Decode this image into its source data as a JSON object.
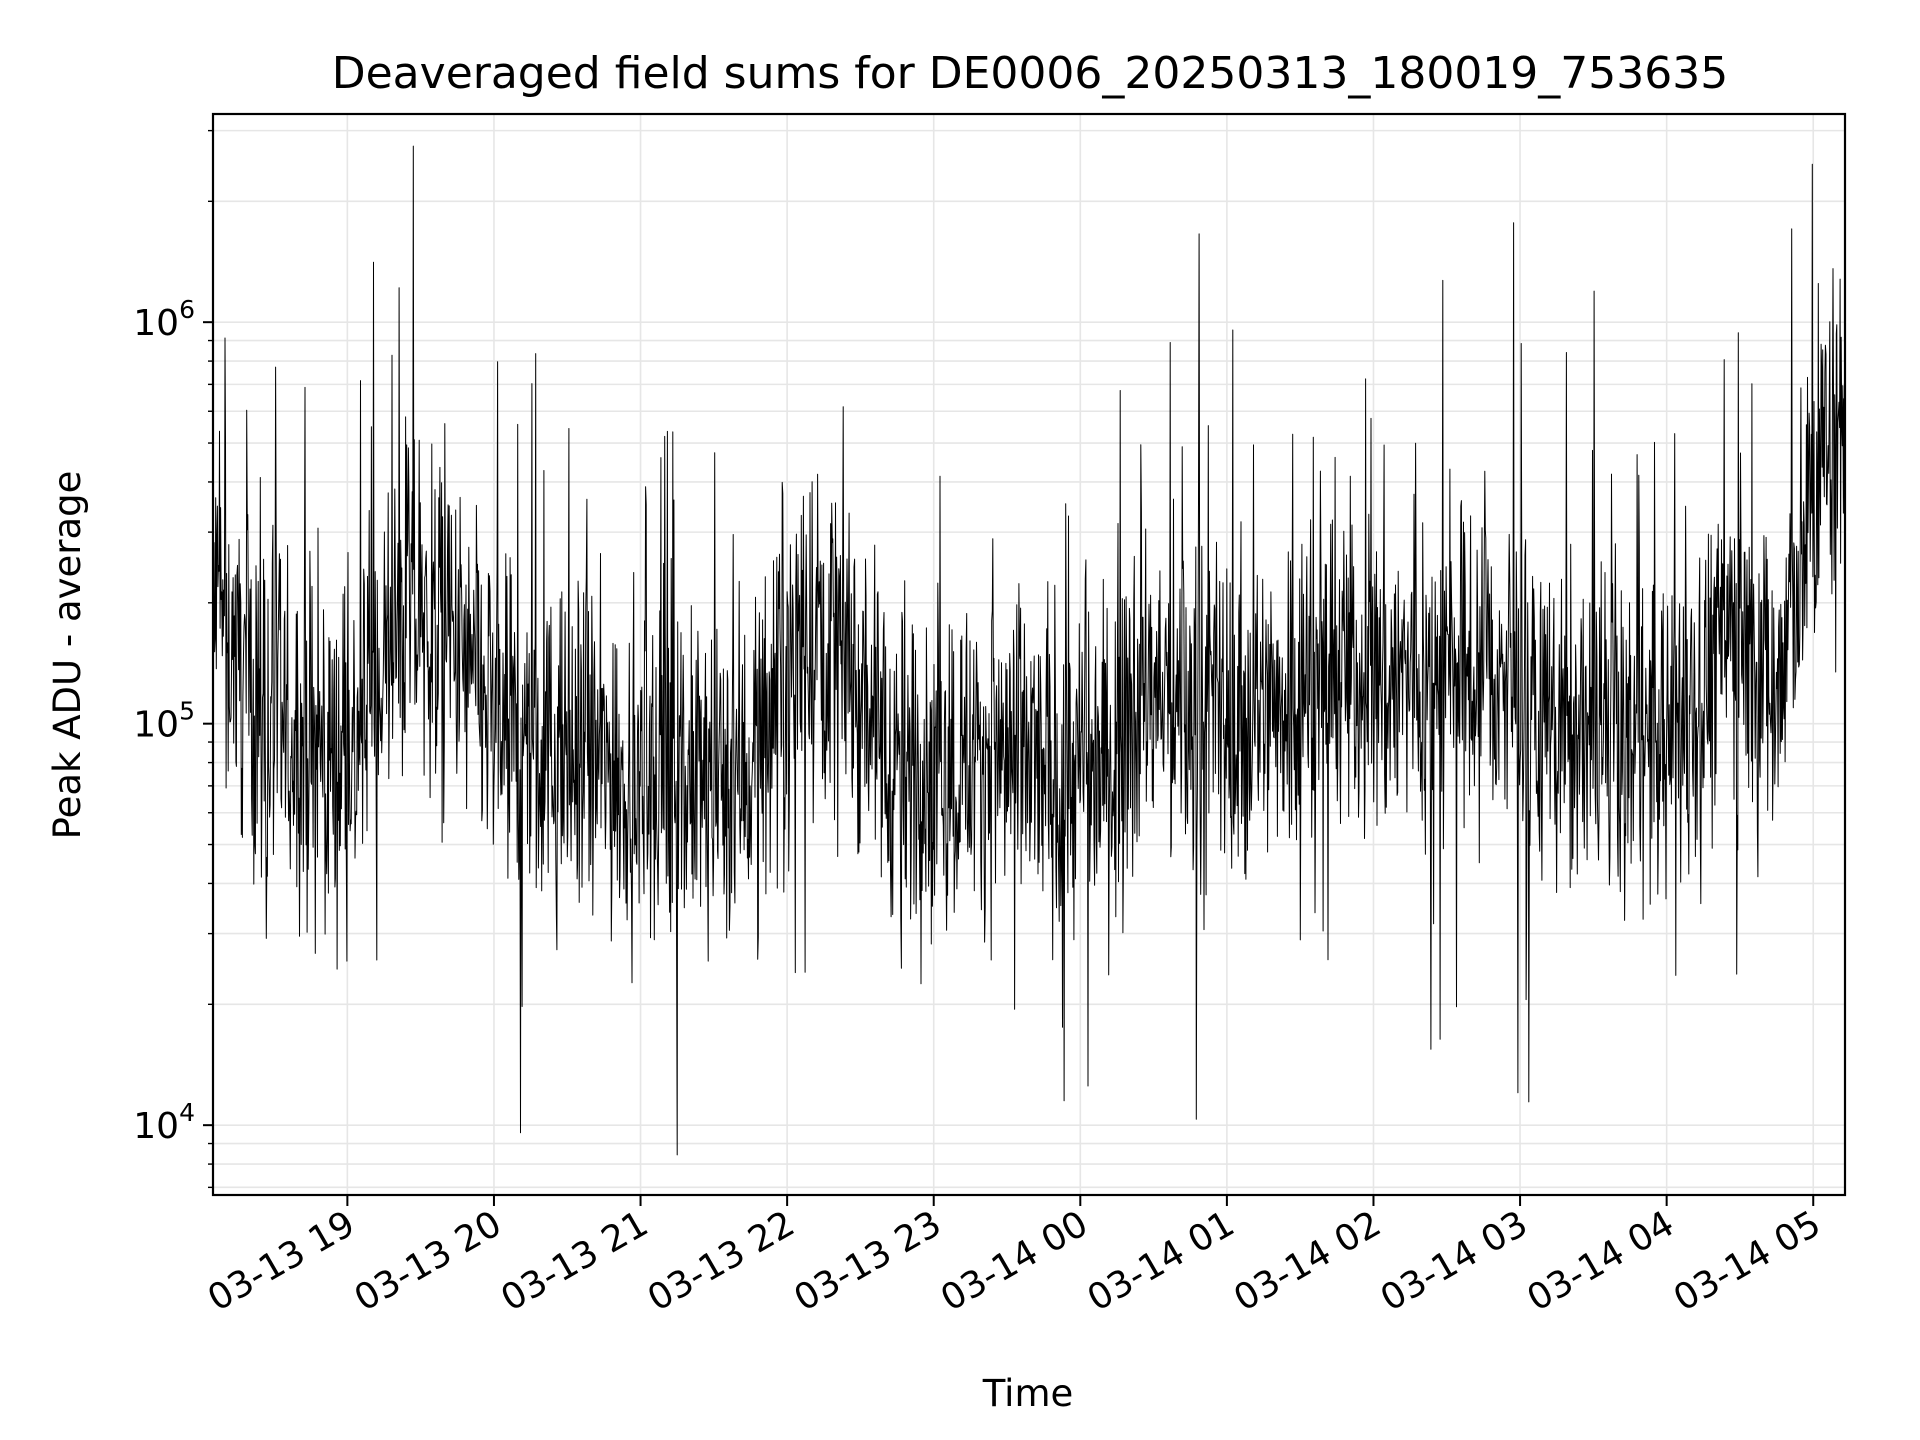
{
  "chart_data": {
    "type": "line",
    "title": "Deaveraged field sums for DE0006_20250313_180019_753635",
    "xlabel": "Time",
    "ylabel": "Peak ADU - average",
    "yscale": "log",
    "ylim": [
      6700,
      3300000
    ],
    "xlim": [
      "2025-03-13 18:05",
      "2025-03-14 05:13"
    ],
    "grid": true,
    "line_color": "#000000",
    "x_ticks": [
      "03-13 19",
      "03-13 20",
      "03-13 21",
      "03-13 22",
      "03-13 23",
      "03-14 00",
      "03-14 01",
      "03-14 02",
      "03-14 03",
      "03-14 04",
      "03-14 05"
    ],
    "y_ticks": [
      {
        "base": "10",
        "exp": "4",
        "value": 10000
      },
      {
        "base": "10",
        "exp": "5",
        "value": 100000
      },
      {
        "base": "10",
        "exp": "6",
        "value": 1000000
      }
    ],
    "series": [
      {
        "x": [
          "2025-03-13 18:05",
          "2025-03-13 18:25",
          "2025-03-13 18:45",
          "2025-03-13 19:05",
          "2025-03-13 19:25",
          "2025-03-13 19:45",
          "2025-03-13 20:05",
          "2025-03-13 20:25",
          "2025-03-13 20:45",
          "2025-03-13 21:05",
          "2025-03-13 21:25",
          "2025-03-13 21:45",
          "2025-03-13 22:05",
          "2025-03-13 22:25",
          "2025-03-13 22:45",
          "2025-03-13 23:05",
          "2025-03-13 23:25",
          "2025-03-13 23:45",
          "2025-03-14 00:05",
          "2025-03-14 00:25",
          "2025-03-14 00:45",
          "2025-03-14 01:05",
          "2025-03-14 01:25",
          "2025-03-14 01:45",
          "2025-03-14 02:05",
          "2025-03-14 02:25",
          "2025-03-14 02:45",
          "2025-03-14 03:05",
          "2025-03-14 03:25",
          "2025-03-14 03:45",
          "2025-03-14 04:05",
          "2025-03-14 04:25",
          "2025-03-14 04:45",
          "2025-03-14 05:05",
          "2025-03-14 05:13"
        ],
        "values": [
          200000,
          110000,
          80000,
          90000,
          200000,
          150000,
          90000,
          80000,
          80000,
          70000,
          70000,
          80000,
          180000,
          160000,
          75000,
          80000,
          85000,
          75000,
          75000,
          120000,
          110000,
          100000,
          120000,
          140000,
          130000,
          130000,
          140000,
          110000,
          90000,
          90000,
          90000,
          180000,
          120000,
          500000,
          550000
        ]
      }
    ]
  }
}
